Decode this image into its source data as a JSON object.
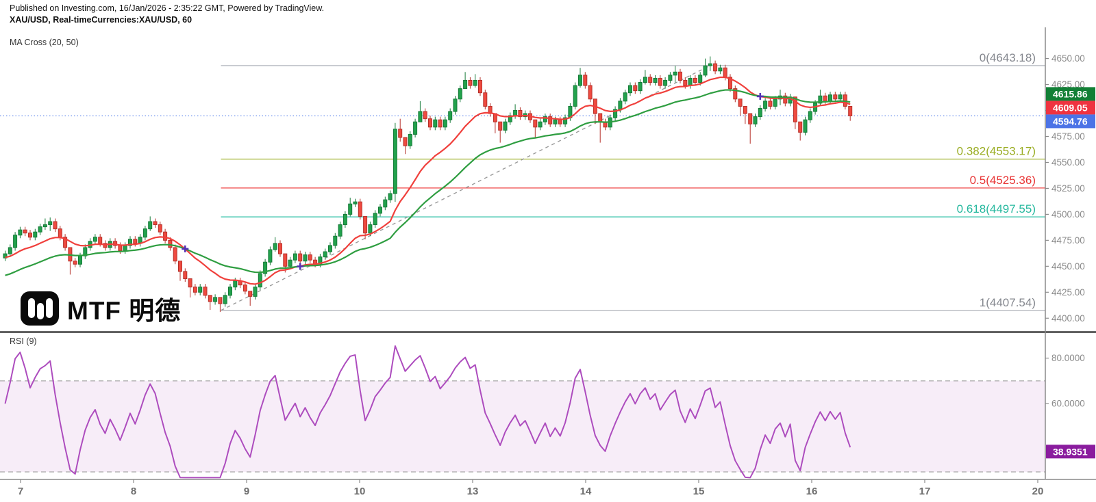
{
  "header": {
    "published_line": "Published on Investing.com, 16/Jan/2026 - 2:35:22 GMT, Powered by TradingView.",
    "symbol_line": "XAU/USD, Real-timeCurrencies:XAU/USD, 60"
  },
  "watermark": {
    "text": "MTF 明德"
  },
  "main_panel": {
    "indicator_label": "MA Cross (20, 50)"
  },
  "rsi_panel": {
    "indicator_label": "RSI (9)",
    "badge_label": "38.9351",
    "badge_value": 38.9351,
    "overbought": 70,
    "oversold": 30,
    "ticks": [
      {
        "v": 80,
        "t": "80.0000"
      },
      {
        "v": 60,
        "t": "60.0000"
      }
    ]
  },
  "price_axis": {
    "ticks": [
      {
        "v": 4650,
        "t": "4650.00"
      },
      {
        "v": 4625,
        "t": "4625.00"
      },
      {
        "v": 4600,
        "t": "4600.00"
      },
      {
        "v": 4575,
        "t": "4575.00"
      },
      {
        "v": 4550,
        "t": "4550.00"
      },
      {
        "v": 4525,
        "t": "4525.00"
      },
      {
        "v": 4500,
        "t": "4500.00"
      },
      {
        "v": 4475,
        "t": "4475.00"
      },
      {
        "v": 4450,
        "t": "4450.00"
      },
      {
        "v": 4425,
        "t": "4425.00"
      },
      {
        "v": 4400,
        "t": "4400.00"
      }
    ],
    "badges": [
      {
        "t": "4615.86",
        "v": 4615.86,
        "bg": "#117f35"
      },
      {
        "t": "4609.05",
        "v": 4609.05,
        "bg": "#ef3340"
      },
      {
        "t": "4594.76",
        "v": 4594.76,
        "bg": "#4c73e6"
      }
    ]
  },
  "time_axis": {
    "labels": [
      "7",
      "8",
      "9",
      "10",
      "13",
      "14",
      "15",
      "16",
      "17",
      "20"
    ]
  },
  "fib": {
    "start_index": 43.5,
    "levels": [
      {
        "label": "0(4643.18)",
        "price": 4643.18,
        "line": "#a5a8b0",
        "text": "#84878e"
      },
      {
        "label": "0.382(4553.17)",
        "price": 4553.17,
        "line": "#a0b22e",
        "text": "#9aad23"
      },
      {
        "label": "0.5(4525.36)",
        "price": 4525.36,
        "line": "#ef4343",
        "text": "#e83535"
      },
      {
        "label": "0.618(4497.55)",
        "price": 4497.55,
        "line": "#2dbfa6",
        "text": "#25b89e"
      },
      {
        "label": "1(4407.54)",
        "price": 4407.54,
        "line": "#a5a8b0",
        "text": "#84878e"
      }
    ]
  },
  "trendline": {
    "i1": 43.5,
    "p1": 4407.54,
    "i2": 141.3,
    "p2": 4643.18
  },
  "chart_data": {
    "type": "candlestick",
    "symbol": "XAU/USD",
    "interval_minutes": 60,
    "ylim": [
      4387,
      4680
    ],
    "rsi_ylim": [
      27,
      91
    ],
    "first_open": 4458,
    "closes": [
      4462,
      4468,
      4480,
      4485,
      4482,
      4478,
      4483,
      4488,
      4490,
      4493,
      4486,
      4478,
      4468,
      4455,
      4452,
      4460,
      4468,
      4474,
      4478,
      4472,
      4468,
      4474,
      4470,
      4465,
      4470,
      4476,
      4472,
      4478,
      4486,
      4493,
      4490,
      4483,
      4475,
      4468,
      4455,
      4445,
      4438,
      4430,
      4425,
      4430,
      4422,
      4416,
      4420,
      4414,
      4422,
      4430,
      4436,
      4432,
      4426,
      4421,
      4430,
      4443,
      4454,
      4466,
      4472,
      4462,
      4450,
      4456,
      4462,
      4455,
      4461,
      4456,
      4452,
      4459,
      4464,
      4470,
      4479,
      4490,
      4500,
      4510,
      4512,
      4498,
      4482,
      4490,
      4501,
      4507,
      4514,
      4520,
      4582,
      4574,
      4566,
      4577,
      4589,
      4599,
      4592,
      4584,
      4591,
      4584,
      4591,
      4599,
      4611,
      4621,
      4629,
      4624,
      4629,
      4617,
      4604,
      4597,
      4589,
      4581,
      4589,
      4595,
      4600,
      4594,
      4597,
      4591,
      4584,
      4589,
      4594,
      4587,
      4591,
      4587,
      4593,
      4604,
      4624,
      4634,
      4624,
      4611,
      4597,
      4589,
      4584,
      4593,
      4601,
      4609,
      4617,
      4624,
      4619,
      4627,
      4632,
      4627,
      4631,
      4624,
      4629,
      4634,
      4637,
      4629,
      4624,
      4631,
      4627,
      4634,
      4643,
      4645,
      4638,
      4641,
      4632,
      4621,
      4611,
      4604,
      4597,
      4587,
      4594,
      4602,
      4609,
      4604,
      4611,
      4614,
      4607,
      4613,
      4589,
      4579,
      4591,
      4599,
      4607,
      4614,
      4609,
      4615,
      4611,
      4615,
      4604,
      4594.76
    ],
    "wick_overrides": {
      "8": [
        4496,
        4485
      ],
      "9": [
        4497,
        4484
      ],
      "13": [
        4460,
        4442
      ],
      "29": [
        4498,
        4484
      ],
      "35": [
        4448,
        4436
      ],
      "37": [
        4434,
        4420
      ],
      "41": [
        4420,
        4408
      ],
      "43": [
        4418,
        4406
      ],
      "49": [
        4424,
        4412
      ],
      "54": [
        4478,
        4464
      ],
      "56": [
        4460,
        4444
      ],
      "69": [
        4516,
        4498
      ],
      "72": [
        4496,
        4476
      ],
      "78": [
        4588,
        4512
      ],
      "79": [
        4592,
        4570
      ],
      "80": [
        4572,
        4558
      ],
      "83": [
        4609,
        4594
      ],
      "92": [
        4637,
        4622
      ],
      "94": [
        4635,
        4622
      ],
      "98": [
        4594,
        4578
      ],
      "99": [
        4587,
        4569
      ],
      "102": [
        4606,
        4592
      ],
      "106": [
        4588,
        4574
      ],
      "115": [
        4641,
        4622
      ],
      "118": [
        4604,
        4587
      ],
      "119": [
        4595,
        4569
      ],
      "128": [
        4639,
        4625
      ],
      "134": [
        4643,
        4627
      ],
      "140": [
        4650,
        4632
      ],
      "141": [
        4652,
        4638
      ],
      "147": [
        4608,
        4595
      ],
      "148": [
        4602,
        4587
      ],
      "149": [
        4594,
        4568
      ],
      "155": [
        4620,
        4605
      ],
      "158": [
        4610,
        4582
      ],
      "159": [
        4586,
        4571
      ],
      "163": [
        4620,
        4605
      ],
      "169": [
        4601,
        4590
      ]
    },
    "ma": [
      {
        "name": "MA 20",
        "period": 20,
        "color": "#f0403c",
        "seed": 4458,
        "k": 0.12,
        "last_value": 4609.05
      },
      {
        "name": "MA 50",
        "period": 50,
        "color": "#2f9e41",
        "seed": 4440,
        "k": 0.055,
        "last_value": 4615.86
      }
    ],
    "rsi": {
      "period": 9,
      "seed_gain": 1.5,
      "seed_loss": 1.0,
      "last_value": 38.9351
    }
  },
  "colors": {
    "up": "#22a24c",
    "up_border": "#167a38",
    "down": "#ef4a40",
    "down_border": "#b5312a",
    "price_line": "#4d79e8",
    "cross_marker": "#5633b5",
    "rsi_line": "#ad4cbe",
    "rsi_fill": "rgba(173,76,190,0.10)",
    "rsi_dash": "#a8a8a8",
    "rsi_badge": "#8a1c9e",
    "axis_line": "#8a8a8a",
    "axis_text": "#8b8b8b",
    "time_text": "#6d6d6d",
    "separator": "#3f3f3f",
    "trend_dash": "#9a9a9a"
  }
}
